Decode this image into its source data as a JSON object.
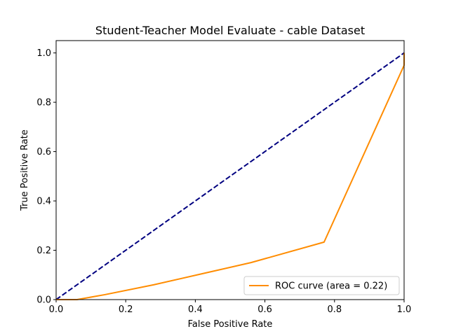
{
  "chart_data": {
    "type": "line",
    "title": "Student-Teacher Model Evaluate - cable Dataset",
    "xlabel": "False Positive Rate",
    "ylabel": "True Positive Rate",
    "xlim": [
      0.0,
      1.0
    ],
    "ylim": [
      0.0,
      1.05
    ],
    "x_ticks": [
      "0.0",
      "0.2",
      "0.4",
      "0.6",
      "0.8",
      "1.0"
    ],
    "y_ticks": [
      "0.0",
      "0.2",
      "0.4",
      "0.6",
      "0.8",
      "1.0"
    ],
    "grid": false,
    "legend_position": "lower right",
    "series": [
      {
        "name": "ROC curve (area = 0.22)",
        "color": "#ff8c00",
        "style": "solid",
        "x": [
          0.0,
          0.06,
          0.14,
          0.28,
          0.42,
          0.56,
          0.77,
          1.0,
          1.0
        ],
        "y": [
          0.0,
          0.0,
          0.02,
          0.06,
          0.105,
          0.15,
          0.233,
          0.95,
          1.0
        ]
      },
      {
        "name": "",
        "color": "#000080",
        "style": "dashed",
        "x": [
          0.0,
          1.0
        ],
        "y": [
          0.0,
          1.0
        ]
      }
    ]
  }
}
